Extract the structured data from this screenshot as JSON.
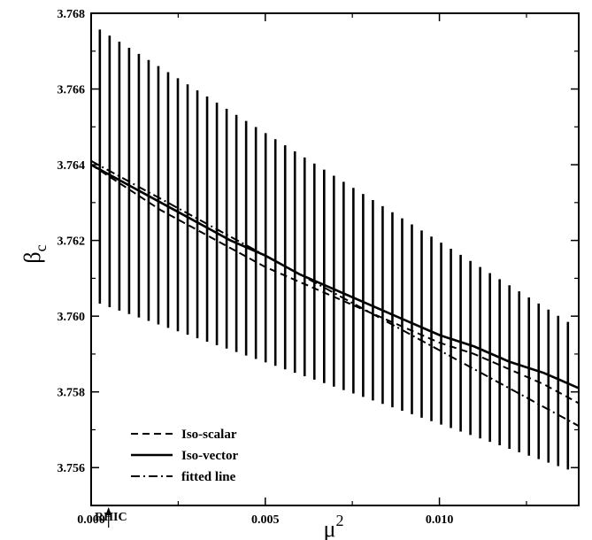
{
  "chart_data": {
    "type": "line",
    "title": "",
    "xlabel": "μ",
    "xlabel_superscript": "2",
    "ylabel": "β",
    "ylabel_subscript": "c",
    "xlim": [
      0,
      0.014
    ],
    "ylim": [
      3.755,
      3.768
    ],
    "x_ticks": [
      {
        "value": 0,
        "label": "0.000"
      },
      {
        "value": 0.005,
        "label": "0.005"
      },
      {
        "value": 0.01,
        "label": "0.010"
      }
    ],
    "y_ticks": [
      {
        "value": 3.756,
        "label": "3.756"
      },
      {
        "value": 3.758,
        "label": "3.758"
      },
      {
        "value": 3.76,
        "label": "3.760"
      },
      {
        "value": 3.762,
        "label": "3.762"
      },
      {
        "value": 3.764,
        "label": "3.764"
      },
      {
        "value": 3.766,
        "label": "3.766"
      },
      {
        "value": 3.768,
        "label": "3.768"
      }
    ],
    "grid": false,
    "legend_position": "bottom-left",
    "series": [
      {
        "name": "Iso-scalar",
        "style": "dashed",
        "x": [
          0,
          0.001,
          0.002,
          0.003,
          0.004,
          0.005,
          0.006,
          0.007,
          0.008,
          0.009,
          0.01,
          0.011,
          0.012,
          0.013,
          0.014
        ],
        "y": [
          3.764,
          3.7634,
          3.7628,
          3.7623,
          3.7618,
          3.7613,
          3.7609,
          3.7605,
          3.7601,
          3.7597,
          3.7593,
          3.759,
          3.7586,
          3.7582,
          3.7577
        ]
      },
      {
        "name": "Iso-vector",
        "style": "solid",
        "x": [
          0,
          0.001,
          0.002,
          0.003,
          0.004,
          0.005,
          0.006,
          0.007,
          0.008,
          0.009,
          0.01,
          0.011,
          0.012,
          0.013,
          0.014
        ],
        "y": [
          3.764,
          3.7635,
          3.763,
          3.7625,
          3.762,
          3.7616,
          3.7611,
          3.7607,
          3.7603,
          3.7599,
          3.7595,
          3.7592,
          3.7588,
          3.7585,
          3.7581
        ]
      },
      {
        "name": "fitted line",
        "style": "dashdot",
        "x": [
          0,
          0.014
        ],
        "y": [
          3.7641,
          3.7571
        ]
      }
    ],
    "error_bars": {
      "x_start": 0.00025,
      "x_step": 0.00028,
      "count": 49,
      "center_start": 3.76395,
      "center_end": 3.7579,
      "half_width_start": 0.00362,
      "half_width_end": 0.00195
    },
    "annotations": [
      {
        "text": "RHIC",
        "x": 0.0005,
        "arrow": "up"
      }
    ]
  }
}
